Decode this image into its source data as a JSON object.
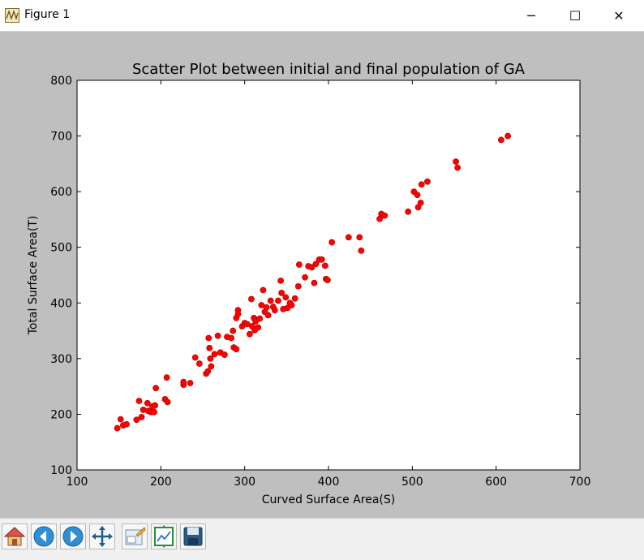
{
  "window": {
    "title": "Figure 1",
    "minimize_glyph": "─",
    "maximize_glyph": "☐",
    "close_glyph": "✕"
  },
  "toolbar": {
    "buttons": [
      {
        "name": "home-icon"
      },
      {
        "name": "back-icon"
      },
      {
        "name": "forward-icon"
      },
      {
        "name": "pan-icon"
      },
      {
        "name": "zoom-icon"
      },
      {
        "name": "subplots-icon"
      },
      {
        "name": "save-icon"
      }
    ]
  },
  "chart_data": {
    "type": "scatter",
    "title": "Scatter Plot between initial and final population of GA",
    "xlabel": "Curved Surface Area(S)",
    "ylabel": "Total Surface Area(T)",
    "xlim": [
      100,
      700
    ],
    "ylim": [
      100,
      800
    ],
    "xticks": [
      100,
      200,
      300,
      400,
      500,
      600,
      700
    ],
    "yticks": [
      100,
      200,
      300,
      400,
      500,
      600,
      700,
      800
    ],
    "grid": false,
    "marker_color": "#ff0000",
    "points": [
      [
        148,
        175
      ],
      [
        152,
        191
      ],
      [
        155,
        180
      ],
      [
        159,
        182
      ],
      [
        171,
        190
      ],
      [
        174,
        224
      ],
      [
        177,
        195
      ],
      [
        179,
        208
      ],
      [
        184,
        220
      ],
      [
        185,
        206
      ],
      [
        188,
        204
      ],
      [
        190,
        214
      ],
      [
        192,
        204
      ],
      [
        193,
        216
      ],
      [
        194,
        247
      ],
      [
        205,
        227
      ],
      [
        207,
        266
      ],
      [
        208,
        222
      ],
      [
        227,
        253
      ],
      [
        227,
        258
      ],
      [
        235,
        256
      ],
      [
        241,
        302
      ],
      [
        246,
        291
      ],
      [
        254,
        273
      ],
      [
        256,
        277
      ],
      [
        257,
        337
      ],
      [
        258,
        319
      ],
      [
        259,
        300
      ],
      [
        260,
        286
      ],
      [
        264,
        308
      ],
      [
        268,
        341
      ],
      [
        271,
        311
      ],
      [
        276,
        307
      ],
      [
        279,
        339
      ],
      [
        284,
        337
      ],
      [
        286,
        350
      ],
      [
        287,
        320
      ],
      [
        290,
        317
      ],
      [
        290,
        373
      ],
      [
        292,
        387
      ],
      [
        292,
        380
      ],
      [
        297,
        358
      ],
      [
        300,
        364
      ],
      [
        303,
        362
      ],
      [
        306,
        344
      ],
      [
        308,
        407
      ],
      [
        309,
        358
      ],
      [
        311,
        373
      ],
      [
        312,
        351
      ],
      [
        313,
        367
      ],
      [
        316,
        356
      ],
      [
        318,
        372
      ],
      [
        320,
        396
      ],
      [
        322,
        423
      ],
      [
        324,
        384
      ],
      [
        326,
        392
      ],
      [
        328,
        378
      ],
      [
        331,
        404
      ],
      [
        334,
        393
      ],
      [
        336,
        387
      ],
      [
        340,
        404
      ],
      [
        343,
        440
      ],
      [
        344,
        418
      ],
      [
        346,
        389
      ],
      [
        349,
        410
      ],
      [
        351,
        391
      ],
      [
        354,
        400
      ],
      [
        356,
        396
      ],
      [
        360,
        408
      ],
      [
        364,
        430
      ],
      [
        365,
        469
      ],
      [
        372,
        446
      ],
      [
        376,
        466
      ],
      [
        380,
        464
      ],
      [
        383,
        436
      ],
      [
        385,
        470
      ],
      [
        389,
        478
      ],
      [
        392,
        478
      ],
      [
        396,
        467
      ],
      [
        397,
        443
      ],
      [
        399,
        441
      ],
      [
        404,
        509
      ],
      [
        424,
        518
      ],
      [
        437,
        518
      ],
      [
        439,
        494
      ],
      [
        461,
        551
      ],
      [
        463,
        560
      ],
      [
        467,
        557
      ],
      [
        495,
        564
      ],
      [
        502,
        600
      ],
      [
        506,
        594
      ],
      [
        507,
        572
      ],
      [
        510,
        580
      ],
      [
        511,
        613
      ],
      [
        518,
        618
      ],
      [
        552,
        654
      ],
      [
        554,
        643
      ],
      [
        606,
        693
      ],
      [
        614,
        700
      ]
    ]
  }
}
